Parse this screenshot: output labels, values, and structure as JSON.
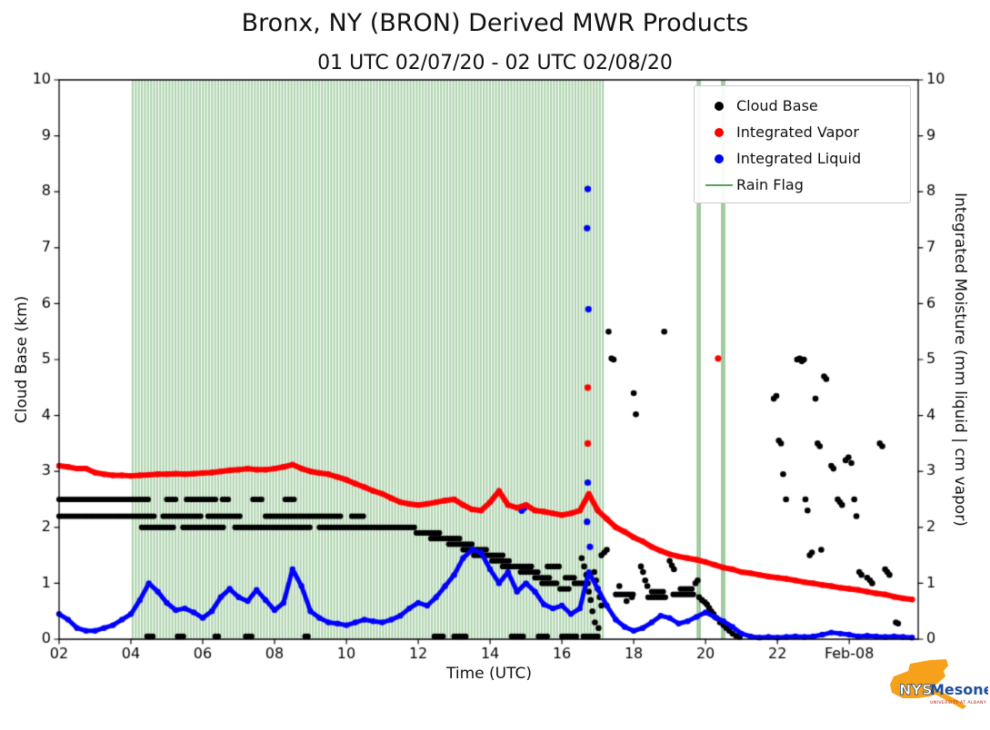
{
  "chart_data": {
    "type": "scatter",
    "title": "Bronx, NY (BRON) Derived MWR Products",
    "subtitle": "01 UTC 02/07/20 - 02 UTC 02/08/20",
    "xlabel": "Time (UTC)",
    "ylabel_left": "Cloud Base (km)",
    "ylabel_right": "Integrated Moisture (mm liquid | cm vapor)",
    "xlim": [
      2,
      25.92
    ],
    "ylim": [
      0,
      10
    ],
    "x_ticks": [
      {
        "v": 2,
        "label": "02"
      },
      {
        "v": 4,
        "label": "04"
      },
      {
        "v": 6,
        "label": "06"
      },
      {
        "v": 8,
        "label": "08"
      },
      {
        "v": 10,
        "label": "10"
      },
      {
        "v": 12,
        "label": "12"
      },
      {
        "v": 14,
        "label": "14"
      },
      {
        "v": 16,
        "label": "16"
      },
      {
        "v": 18,
        "label": "18"
      },
      {
        "v": 20,
        "label": "20"
      },
      {
        "v": 22,
        "label": "22"
      },
      {
        "v": 24,
        "label": "Feb-08"
      }
    ],
    "y_ticks": [
      0,
      1,
      2,
      3,
      4,
      5,
      6,
      7,
      8,
      9,
      10
    ],
    "legend": [
      {
        "label": "Cloud Base",
        "color": "#000000",
        "marker": "dot"
      },
      {
        "label": "Integrated Vapor",
        "color": "#ff0000",
        "marker": "dot"
      },
      {
        "label": "Integrated Liquid",
        "color": "#0000ff",
        "marker": "dot"
      },
      {
        "label": "Rain Flag",
        "color": "#5fa05f",
        "marker": "line"
      }
    ],
    "rain_flag": {
      "color": "#2e8b2e",
      "band_alpha": 0.38,
      "line_alpha": 0.55,
      "bands": [
        [
          4.05,
          17.2
        ]
      ],
      "lines": [
        19.78,
        19.84,
        20.46,
        20.52
      ]
    },
    "series": {
      "integrated_vapor": {
        "color": "#ff0000",
        "x_start": 2.0,
        "x_step": 0.25,
        "y": [
          3.1,
          3.08,
          3.05,
          3.05,
          2.98,
          2.95,
          2.93,
          2.93,
          2.92,
          2.93,
          2.94,
          2.95,
          2.95,
          2.96,
          2.95,
          2.96,
          2.97,
          2.98,
          3.0,
          3.02,
          3.03,
          3.05,
          3.03,
          3.03,
          3.05,
          3.08,
          3.12,
          3.05,
          3.0,
          2.97,
          2.95,
          2.9,
          2.85,
          2.78,
          2.72,
          2.65,
          2.6,
          2.52,
          2.45,
          2.42,
          2.4,
          2.42,
          2.45,
          2.48,
          2.5,
          2.4,
          2.32,
          2.3,
          2.45,
          2.65,
          2.4,
          2.35,
          2.4,
          2.3,
          2.28,
          2.25,
          2.22,
          2.25,
          2.3,
          2.6,
          2.3,
          2.15,
          2.0,
          1.92,
          1.82,
          1.75,
          1.65,
          1.58,
          1.52,
          1.48,
          1.45,
          1.42,
          1.38,
          1.33,
          1.28,
          1.25,
          1.2,
          1.18,
          1.15,
          1.12,
          1.1,
          1.08,
          1.05,
          1.02,
          1.0,
          0.97,
          0.95,
          0.92,
          0.9,
          0.88,
          0.85,
          0.82,
          0.8,
          0.76,
          0.73,
          0.71
        ],
        "outliers": [
          [
            16.72,
            4.5
          ],
          [
            16.72,
            3.5
          ],
          [
            20.35,
            5.02
          ]
        ]
      },
      "integrated_liquid": {
        "color": "#0000ff",
        "x_start": 2.0,
        "x_step": 0.25,
        "y": [
          0.45,
          0.35,
          0.2,
          0.15,
          0.15,
          0.2,
          0.25,
          0.35,
          0.45,
          0.7,
          1.0,
          0.85,
          0.65,
          0.52,
          0.55,
          0.48,
          0.38,
          0.5,
          0.75,
          0.9,
          0.75,
          0.68,
          0.88,
          0.7,
          0.52,
          0.65,
          1.25,
          0.95,
          0.5,
          0.38,
          0.3,
          0.28,
          0.25,
          0.3,
          0.35,
          0.32,
          0.3,
          0.35,
          0.42,
          0.55,
          0.65,
          0.6,
          0.75,
          0.95,
          1.15,
          1.45,
          1.6,
          1.55,
          1.25,
          1.0,
          1.2,
          0.85,
          1.0,
          0.85,
          0.62,
          0.55,
          0.6,
          0.45,
          0.55,
          1.2,
          0.9,
          0.6,
          0.35,
          0.22,
          0.15,
          0.2,
          0.3,
          0.42,
          0.38,
          0.28,
          0.32,
          0.4,
          0.48,
          0.4,
          0.32,
          0.22,
          0.1,
          0.05,
          0.03,
          0.04,
          0.03,
          0.04,
          0.05,
          0.04,
          0.05,
          0.08,
          0.12,
          0.1,
          0.08,
          0.05,
          0.06,
          0.05,
          0.04,
          0.05,
          0.04,
          0.03
        ],
        "outliers": [
          [
            16.72,
            8.05
          ],
          [
            16.7,
            7.35
          ],
          [
            16.74,
            5.9
          ],
          [
            16.72,
            2.8
          ],
          [
            16.7,
            2.1
          ],
          [
            16.78,
            1.65
          ],
          [
            14.95,
            2.35
          ],
          [
            14.88,
            2.3
          ]
        ]
      },
      "cloud_base": {
        "color": "#000000",
        "run_step": 0.08,
        "runs": [
          {
            "y": 2.5,
            "x0": 2.0,
            "x1": 4.55
          },
          {
            "y": 2.5,
            "x0": 5.0,
            "x1": 5.3
          },
          {
            "y": 2.5,
            "x0": 5.55,
            "x1": 6.35
          },
          {
            "y": 2.5,
            "x0": 6.55,
            "x1": 6.72
          },
          {
            "y": 2.5,
            "x0": 7.4,
            "x1": 7.7
          },
          {
            "y": 2.5,
            "x0": 8.3,
            "x1": 8.55
          },
          {
            "y": 2.2,
            "x0": 2.0,
            "x1": 4.65
          },
          {
            "y": 2.2,
            "x0": 4.9,
            "x1": 5.95
          },
          {
            "y": 2.2,
            "x0": 6.15,
            "x1": 7.05
          },
          {
            "y": 2.2,
            "x0": 7.75,
            "x1": 9.85
          },
          {
            "y": 2.2,
            "x0": 10.15,
            "x1": 10.5
          },
          {
            "y": 2.0,
            "x0": 4.3,
            "x1": 5.2
          },
          {
            "y": 2.0,
            "x0": 5.45,
            "x1": 6.6
          },
          {
            "y": 2.0,
            "x0": 6.9,
            "x1": 9.05
          },
          {
            "y": 2.0,
            "x0": 9.25,
            "x1": 11.95
          },
          {
            "y": 1.9,
            "x0": 11.95,
            "x1": 12.65
          },
          {
            "y": 1.8,
            "x0": 12.35,
            "x1": 13.15
          },
          {
            "y": 1.7,
            "x0": 12.85,
            "x1": 13.55
          },
          {
            "y": 1.6,
            "x0": 13.25,
            "x1": 13.95
          },
          {
            "y": 1.5,
            "x0": 13.55,
            "x1": 14.35
          },
          {
            "y": 1.4,
            "x0": 14.05,
            "x1": 14.55
          },
          {
            "y": 1.3,
            "x0": 14.35,
            "x1": 15.15
          },
          {
            "y": 1.3,
            "x0": 15.6,
            "x1": 15.95
          },
          {
            "y": 1.2,
            "x0": 14.85,
            "x1": 15.35
          },
          {
            "y": 1.1,
            "x0": 15.25,
            "x1": 15.65
          },
          {
            "y": 1.0,
            "x0": 15.45,
            "x1": 15.85
          },
          {
            "y": 1.1,
            "x0": 16.1,
            "x1": 16.35
          },
          {
            "y": 1.0,
            "x0": 16.35,
            "x1": 16.6
          },
          {
            "y": 0.9,
            "x0": 15.95,
            "x1": 16.2
          },
          {
            "y": 0.8,
            "x0": 17.5,
            "x1": 18.05
          },
          {
            "y": 0.75,
            "x0": 18.4,
            "x1": 18.9
          },
          {
            "y": 0.85,
            "x0": 18.5,
            "x1": 18.85
          },
          {
            "y": 0.8,
            "x0": 19.1,
            "x1": 19.7
          },
          {
            "y": 0.9,
            "x0": 19.3,
            "x1": 19.65
          },
          {
            "y": 0.05,
            "x0": 4.45,
            "x1": 4.65
          },
          {
            "y": 0.05,
            "x0": 5.3,
            "x1": 5.5
          },
          {
            "y": 0.05,
            "x0": 6.35,
            "x1": 6.5
          },
          {
            "y": 0.05,
            "x0": 7.2,
            "x1": 7.4
          },
          {
            "y": 0.05,
            "x0": 8.85,
            "x1": 9.0
          },
          {
            "y": 0.05,
            "x0": 12.45,
            "x1": 12.7
          },
          {
            "y": 0.05,
            "x0": 13.0,
            "x1": 13.35
          },
          {
            "y": 0.05,
            "x0": 14.6,
            "x1": 14.95
          },
          {
            "y": 0.05,
            "x0": 15.35,
            "x1": 15.65
          },
          {
            "y": 0.05,
            "x0": 16.0,
            "x1": 16.45
          },
          {
            "y": 0.05,
            "x0": 16.6,
            "x1": 17.05
          }
        ],
        "points": [
          [
            16.55,
            1.45
          ],
          [
            16.62,
            1.3
          ],
          [
            16.68,
            1.15
          ],
          [
            16.72,
            1.0
          ],
          [
            16.75,
            0.85
          ],
          [
            16.8,
            0.7
          ],
          [
            16.85,
            0.5
          ],
          [
            16.9,
            1.2
          ],
          [
            16.95,
            1.05
          ],
          [
            17.0,
            0.9
          ],
          [
            17.05,
            0.75
          ],
          [
            17.1,
            0.6
          ],
          [
            16.92,
            0.3
          ],
          [
            17.02,
            0.2
          ],
          [
            17.1,
            1.5
          ],
          [
            17.18,
            1.55
          ],
          [
            17.25,
            1.6
          ],
          [
            17.3,
            5.5
          ],
          [
            17.38,
            5.02
          ],
          [
            17.44,
            5.0
          ],
          [
            17.6,
            0.95
          ],
          [
            17.8,
            0.68
          ],
          [
            17.95,
            0.75
          ],
          [
            18.0,
            4.4
          ],
          [
            18.06,
            4.02
          ],
          [
            18.2,
            1.3
          ],
          [
            18.26,
            1.2
          ],
          [
            18.32,
            1.05
          ],
          [
            18.38,
            0.95
          ],
          [
            18.85,
            5.5
          ],
          [
            19.0,
            1.4
          ],
          [
            19.06,
            1.32
          ],
          [
            19.12,
            1.25
          ],
          [
            19.72,
            1.0
          ],
          [
            19.78,
            1.05
          ],
          [
            19.82,
            0.75
          ],
          [
            19.9,
            0.7
          ],
          [
            19.98,
            0.66
          ],
          [
            20.04,
            0.62
          ],
          [
            20.1,
            0.56
          ],
          [
            20.16,
            0.5
          ],
          [
            20.22,
            0.45
          ],
          [
            20.3,
            0.38
          ],
          [
            20.4,
            0.3
          ],
          [
            20.5,
            0.25
          ],
          [
            20.58,
            0.2
          ],
          [
            20.66,
            0.15
          ],
          [
            20.75,
            0.1
          ],
          [
            20.85,
            0.06
          ],
          [
            20.95,
            0.04
          ],
          [
            21.9,
            4.3
          ],
          [
            21.97,
            4.35
          ],
          [
            22.04,
            3.55
          ],
          [
            22.1,
            3.5
          ],
          [
            22.16,
            2.95
          ],
          [
            22.24,
            2.5
          ],
          [
            22.55,
            5.0
          ],
          [
            22.62,
            5.02
          ],
          [
            22.68,
            4.97
          ],
          [
            22.74,
            5.0
          ],
          [
            22.78,
            2.5
          ],
          [
            22.84,
            2.3
          ],
          [
            22.9,
            1.5
          ],
          [
            22.96,
            1.55
          ],
          [
            23.06,
            4.3
          ],
          [
            23.12,
            3.5
          ],
          [
            23.18,
            3.45
          ],
          [
            23.22,
            1.6
          ],
          [
            23.3,
            4.7
          ],
          [
            23.36,
            4.65
          ],
          [
            23.5,
            3.1
          ],
          [
            23.56,
            3.05
          ],
          [
            23.68,
            2.5
          ],
          [
            23.74,
            2.45
          ],
          [
            23.8,
            2.4
          ],
          [
            23.9,
            3.2
          ],
          [
            23.98,
            3.25
          ],
          [
            24.06,
            3.15
          ],
          [
            24.14,
            2.5
          ],
          [
            24.2,
            2.2
          ],
          [
            24.28,
            1.2
          ],
          [
            24.34,
            1.15
          ],
          [
            24.5,
            1.1
          ],
          [
            24.58,
            1.05
          ],
          [
            24.64,
            1.0
          ],
          [
            24.85,
            3.5
          ],
          [
            24.92,
            3.45
          ],
          [
            25.0,
            1.25
          ],
          [
            25.06,
            1.2
          ],
          [
            25.12,
            1.15
          ],
          [
            25.3,
            0.3
          ],
          [
            25.36,
            0.28
          ]
        ]
      }
    }
  },
  "logo": {
    "text1": "NYS",
    "text2": "Mesonet",
    "sub": "UNIVERSITY AT ALBANY",
    "state_color": "#F7A11A",
    "navy": "#16406e",
    "blue": "#1b4f9c",
    "red": "#a01820"
  }
}
